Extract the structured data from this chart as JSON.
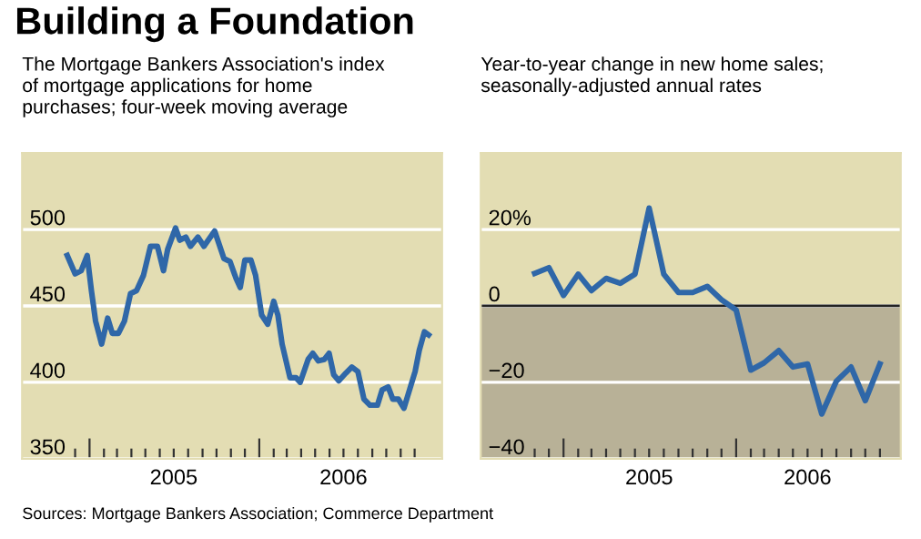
{
  "chart_data": [
    {
      "type": "line",
      "title": "Building a Foundation",
      "subtitle": "The Mortgage Bankers Association's index of mortgage applications for home purchases; four-week moving average",
      "x": [
        "2004-11-14",
        "2004-12-01",
        "2004-12-14",
        "2004-12-27",
        "2005-01-05",
        "2005-01-14",
        "2005-01-27",
        "2005-02-09",
        "2005-02-19",
        "2005-03-04",
        "2005-03-17",
        "2005-03-30",
        "2005-04-12",
        "2005-04-27",
        "2005-05-12",
        "2005-05-27",
        "2005-06-09",
        "2005-06-18",
        "2005-07-05",
        "2005-07-14",
        "2005-07-27",
        "2005-08-06",
        "2005-08-22",
        "2005-09-04",
        "2005-09-27",
        "2005-10-17",
        "2005-10-30",
        "2005-11-12",
        "2005-11-21",
        "2005-12-01",
        "2005-12-14",
        "2005-12-24",
        "2006-01-06",
        "2006-01-19",
        "2006-02-01",
        "2006-02-10",
        "2006-02-19",
        "2006-03-08",
        "2006-03-21",
        "2006-03-30",
        "2006-04-16",
        "2006-04-26",
        "2006-05-08",
        "2006-05-21",
        "2006-05-31",
        "2006-06-10",
        "2006-06-21",
        "2006-07-06",
        "2006-07-19",
        "2006-08-01",
        "2006-08-14",
        "2006-08-27",
        "2006-09-12",
        "2006-09-22",
        "2006-10-05",
        "2006-10-15",
        "2006-10-27",
        "2006-11-08",
        "2006-11-18",
        "2006-12-02",
        "2006-12-11",
        "2006-12-22",
        "2006-12-31"
      ],
      "series": [
        {
          "color": "#2f67a8",
          "values": [
            483,
            471,
            473,
            483,
            460,
            440,
            425,
            442,
            432,
            432,
            440,
            458,
            460,
            470,
            489,
            489,
            473,
            487,
            501,
            493,
            495,
            489,
            495,
            489,
            499,
            481,
            479,
            468,
            462,
            480,
            480,
            470,
            444,
            438,
            453,
            444,
            425,
            403,
            403,
            400,
            415,
            419,
            414,
            415,
            419,
            405,
            401,
            406,
            410,
            407,
            389,
            385,
            385,
            395,
            397,
            389,
            389,
            383,
            393,
            407,
            421,
            433,
            431
          ]
        }
      ],
      "xlim": [
        "2004-08-09",
        "2007-01-29"
      ],
      "xticks": [
        {
          "value": "2004-12-01",
          "label": null
        },
        {
          "value": "2005-01-01",
          "label": null
        },
        {
          "value": "2005-02-01",
          "label": null
        },
        {
          "value": "2005-03-01",
          "label": null
        },
        {
          "value": "2005-04-01",
          "label": null
        },
        {
          "value": "2005-05-01",
          "label": null
        },
        {
          "value": "2005-06-01",
          "label": null
        },
        {
          "value": "2005-07-01",
          "label": "2005"
        },
        {
          "value": "2005-08-01",
          "label": null
        },
        {
          "value": "2005-09-01",
          "label": null
        },
        {
          "value": "2005-10-01",
          "label": null
        },
        {
          "value": "2005-11-01",
          "label": null
        },
        {
          "value": "2005-12-01",
          "label": null
        },
        {
          "value": "2006-01-01",
          "label": null
        },
        {
          "value": "2006-02-01",
          "label": null
        },
        {
          "value": "2006-03-01",
          "label": null
        },
        {
          "value": "2006-04-01",
          "label": null
        },
        {
          "value": "2006-05-01",
          "label": null
        },
        {
          "value": "2006-06-01",
          "label": null
        },
        {
          "value": "2006-07-01",
          "label": "2006"
        },
        {
          "value": "2006-08-01",
          "label": null
        },
        {
          "value": "2006-09-01",
          "label": null
        },
        {
          "value": "2006-10-01",
          "label": null
        },
        {
          "value": "2006-11-01",
          "label": null
        },
        {
          "value": "2006-12-01",
          "label": null
        }
      ],
      "ylim": [
        350,
        550
      ],
      "yticks": [
        350,
        400,
        450,
        500
      ],
      "grid": "y",
      "legend": false,
      "marker": "none",
      "line_style": "solid",
      "annotations": [
        "Sources: Mortgage Bankers Association; Commerce Department"
      ]
    },
    {
      "type": "line",
      "subtitle": "Year-to-year change in new home sales; seasonally-adjusted annual rates",
      "x": [
        "2004-11-01",
        "2004-12-01",
        "2005-01-01",
        "2005-02-01",
        "2005-03-01",
        "2005-04-01",
        "2005-05-01",
        "2005-06-01",
        "2005-07-01",
        "2005-08-01",
        "2005-09-01",
        "2005-10-01",
        "2005-11-01",
        "2005-12-01",
        "2006-01-01",
        "2006-02-01",
        "2006-03-01",
        "2006-04-01",
        "2006-05-01",
        "2006-06-01",
        "2006-07-01",
        "2006-08-01",
        "2006-09-01",
        "2006-10-01",
        "2006-11-01"
      ],
      "series": [
        {
          "color": "#2f67a8",
          "values": [
            8.5,
            10,
            2.7,
            8.3,
            4,
            7.2,
            5.9,
            8.3,
            25.6,
            8.3,
            3.5,
            3.5,
            5.1,
            1.6,
            -1.1,
            -16.8,
            -14.9,
            -11.7,
            -16,
            -15.2,
            -28.3,
            -19.7,
            -16,
            -24.8,
            -15.2
          ]
        }
      ],
      "xlim": [
        "2004-07-10",
        "2006-12-15"
      ],
      "xticks": [
        {
          "value": "2004-11-01",
          "label": null
        },
        {
          "value": "2004-12-01",
          "label": null
        },
        {
          "value": "2005-01-01",
          "label": null
        },
        {
          "value": "2005-02-01",
          "label": null
        },
        {
          "value": "2005-03-01",
          "label": null
        },
        {
          "value": "2005-04-01",
          "label": null
        },
        {
          "value": "2005-05-01",
          "label": null
        },
        {
          "value": "2005-06-01",
          "label": null
        },
        {
          "value": "2005-07-01",
          "label": "2005"
        },
        {
          "value": "2005-08-01",
          "label": null
        },
        {
          "value": "2005-09-01",
          "label": null
        },
        {
          "value": "2005-10-01",
          "label": null
        },
        {
          "value": "2005-11-01",
          "label": null
        },
        {
          "value": "2005-12-01",
          "label": null
        },
        {
          "value": "2006-01-01",
          "label": null
        },
        {
          "value": "2006-02-01",
          "label": null
        },
        {
          "value": "2006-03-01",
          "label": null
        },
        {
          "value": "2006-04-01",
          "label": null
        },
        {
          "value": "2006-05-01",
          "label": null
        },
        {
          "value": "2006-06-01",
          "label": "2006"
        },
        {
          "value": "2006-07-01",
          "label": null
        },
        {
          "value": "2006-08-01",
          "label": null
        },
        {
          "value": "2006-09-01",
          "label": null
        },
        {
          "value": "2006-10-01",
          "label": null
        },
        {
          "value": "2006-11-01",
          "label": null
        }
      ],
      "ylim": [
        -40,
        40
      ],
      "yticks": [
        {
          "value": -40,
          "label": "−40"
        },
        {
          "value": -20,
          "label": "−20"
        },
        0,
        {
          "value": 20,
          "label": "20%"
        }
      ],
      "grid": "y",
      "legend": false,
      "marker": "none",
      "line_style": "solid",
      "bands": [
        {
          "axis": "y",
          "from": -40,
          "to": 0,
          "color": "#b8b197"
        }
      ],
      "ref_lines": [
        {
          "axis": "y",
          "value": 0,
          "color": "#222222",
          "line_style": "solid"
        }
      ]
    }
  ]
}
